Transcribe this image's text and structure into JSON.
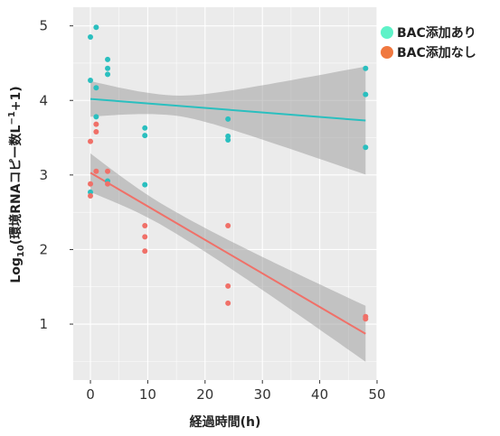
{
  "chart_data": {
    "type": "scatter",
    "xlabel": "経過時間(h)",
    "ylabel_base": "Log",
    "ylabel_sub": "10",
    "ylabel_rest": "(環境RNAコピー数L",
    "ylabel_sup": "−1",
    "ylabel_end": "+1)",
    "xlim": [
      -3,
      50
    ],
    "ylim": [
      0.25,
      5.25
    ],
    "xticks": [
      0,
      10,
      20,
      30,
      40,
      50
    ],
    "yticks": [
      1,
      2,
      3,
      4,
      5
    ],
    "grid": true,
    "legend_position": "top-right",
    "series": [
      {
        "name": "BAC添加あり",
        "color": "#2ABFBF",
        "legend_color": "#5FF2C8",
        "points": [
          [
            0,
            4.85
          ],
          [
            0,
            4.27
          ],
          [
            0,
            2.77
          ],
          [
            1,
            4.98
          ],
          [
            1,
            4.17
          ],
          [
            1,
            3.78
          ],
          [
            3,
            4.55
          ],
          [
            3,
            4.43
          ],
          [
            3,
            4.35
          ],
          [
            3,
            2.92
          ],
          [
            9.5,
            3.63
          ],
          [
            9.5,
            3.53
          ],
          [
            9.5,
            2.87
          ],
          [
            24,
            3.75
          ],
          [
            24,
            3.52
          ],
          [
            24,
            3.47
          ],
          [
            48,
            4.43
          ],
          [
            48,
            4.08
          ],
          [
            48,
            3.37
          ]
        ],
        "fit": {
          "x": [
            0,
            48
          ],
          "y": [
            4.02,
            3.73
          ],
          "band": {
            "x": [
              0,
              48
            ],
            "lower": [
              3.78,
              3.0
            ],
            "upper": [
              4.26,
              4.45
            ]
          }
        }
      },
      {
        "name": "BAC添加なし",
        "color": "#F07068",
        "legend_color": "#F07840",
        "points": [
          [
            0,
            3.45
          ],
          [
            0,
            2.88
          ],
          [
            0,
            2.72
          ],
          [
            1,
            3.68
          ],
          [
            1,
            3.58
          ],
          [
            1,
            3.05
          ],
          [
            3,
            3.05
          ],
          [
            3,
            2.88
          ],
          [
            9.5,
            2.32
          ],
          [
            9.5,
            2.17
          ],
          [
            9.5,
            1.98
          ],
          [
            24,
            2.32
          ],
          [
            24,
            1.51
          ],
          [
            24,
            1.28
          ],
          [
            48,
            1.1
          ],
          [
            48,
            1.07
          ]
        ],
        "fit": {
          "x": [
            0,
            48
          ],
          "y": [
            3.03,
            0.87
          ],
          "band": {
            "x": [
              0,
              48
            ],
            "lower": [
              2.77,
              0.5
            ],
            "upper": [
              3.29,
              1.25
            ]
          }
        }
      }
    ]
  }
}
